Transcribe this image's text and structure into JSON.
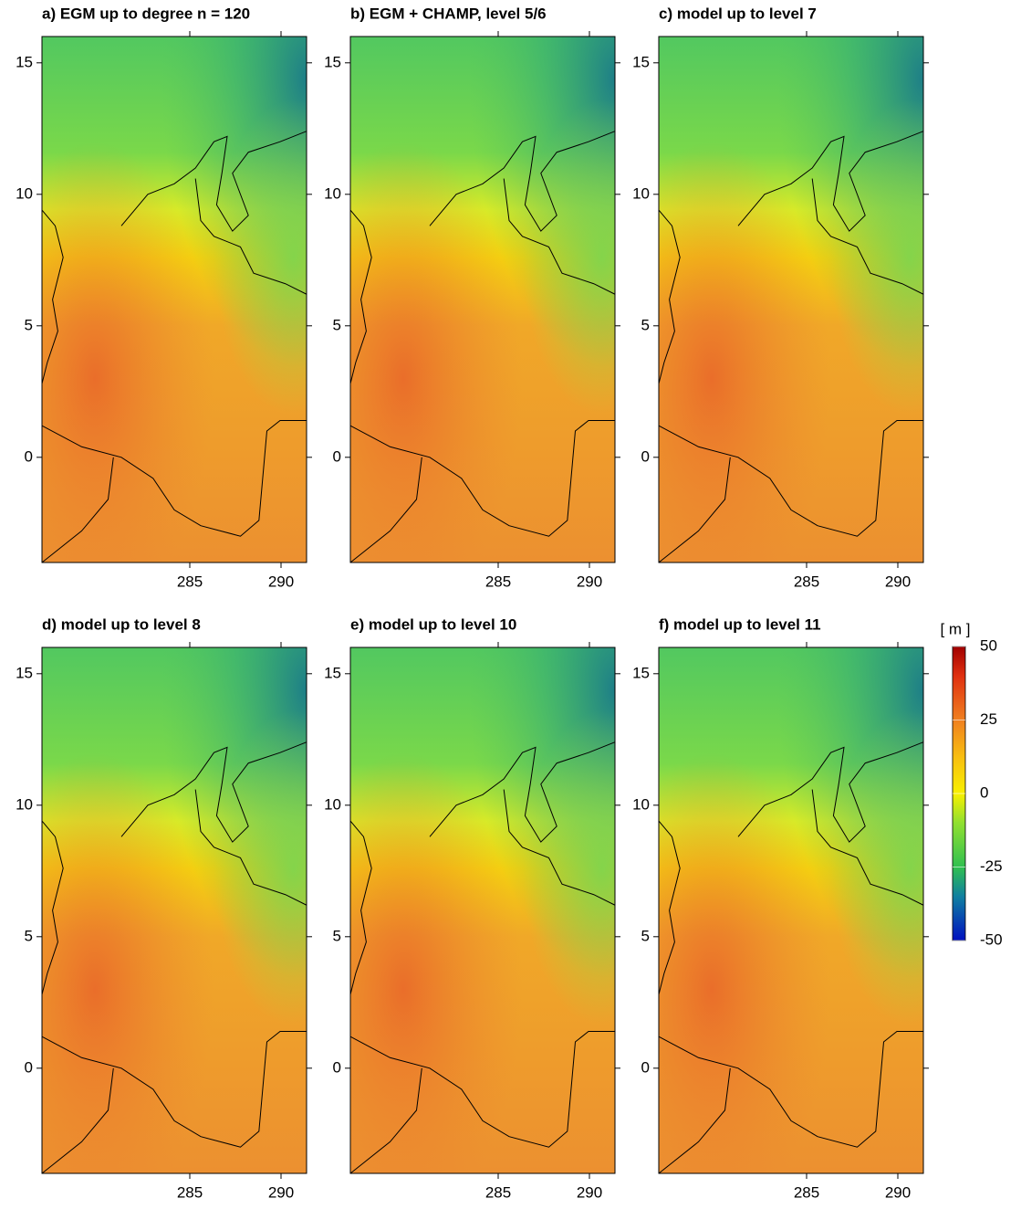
{
  "chart_data": [
    {
      "type": "map",
      "title": "a)  EGM up to degree n = 120",
      "xlim": [
        276.9,
        291.4
      ],
      "ylim": [
        -4,
        16
      ],
      "xticks": [
        285,
        290
      ],
      "yticks": [
        0,
        5,
        10,
        15
      ]
    },
    {
      "type": "map",
      "title": "b)  EGM + CHAMP, level 5/6",
      "xlim": [
        276.9,
        291.4
      ],
      "ylim": [
        -4,
        16
      ],
      "xticks": [
        285,
        290
      ],
      "yticks": [
        0,
        5,
        10,
        15
      ]
    },
    {
      "type": "map",
      "title": "c)  model up to level  7",
      "xlim": [
        276.9,
        291.4
      ],
      "ylim": [
        -4,
        16
      ],
      "xticks": [
        285,
        290
      ],
      "yticks": [
        0,
        5,
        10,
        15
      ]
    },
    {
      "type": "map",
      "title": "d)  model up to level  8",
      "xlim": [
        276.9,
        291.4
      ],
      "ylim": [
        -4,
        16
      ],
      "xticks": [
        285,
        290
      ],
      "yticks": [
        0,
        5,
        10,
        15
      ]
    },
    {
      "type": "map",
      "title": "e)  model up to level 10",
      "xlim": [
        276.9,
        291.4
      ],
      "ylim": [
        -4,
        16
      ],
      "xticks": [
        285,
        290
      ],
      "yticks": [
        0,
        5,
        10,
        15
      ]
    },
    {
      "type": "map",
      "title": "f)  model up to level 11",
      "xlim": [
        276.9,
        291.4
      ],
      "ylim": [
        -4,
        16
      ],
      "xticks": [
        285,
        290
      ],
      "yticks": [
        0,
        5,
        10,
        15
      ]
    }
  ],
  "colorbar": {
    "label": "[ m ]",
    "lim": [
      -50,
      50
    ],
    "ticks": [
      50,
      25,
      0,
      -25,
      -50
    ]
  }
}
